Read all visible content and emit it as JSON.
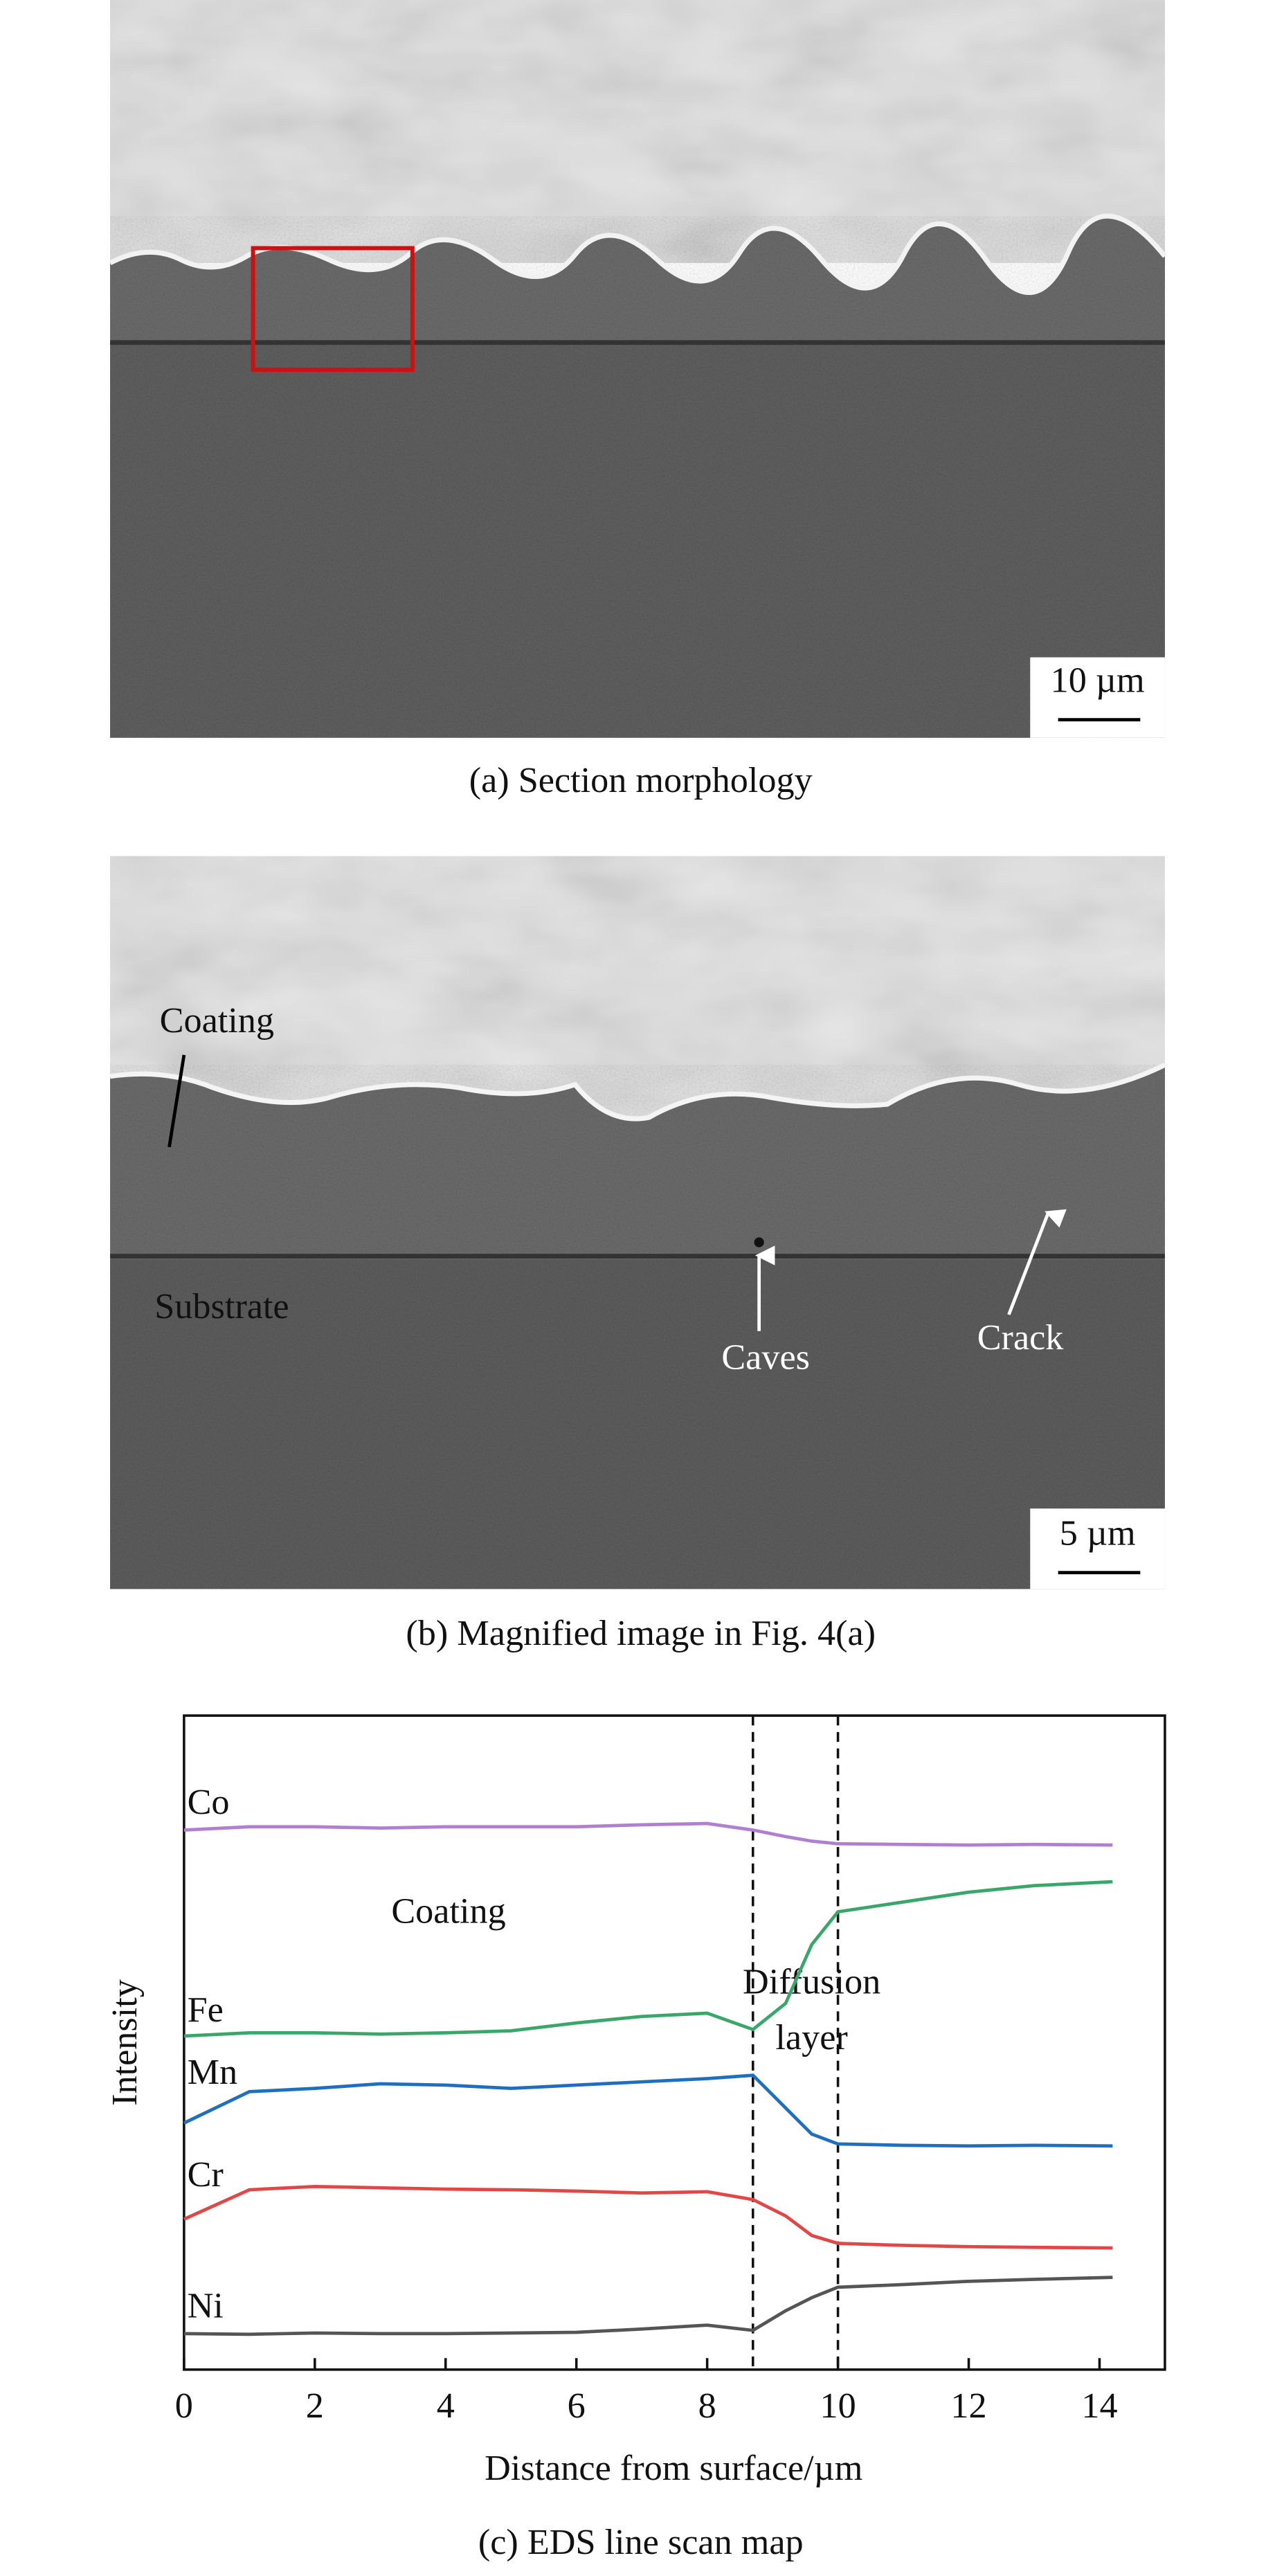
{
  "panels": [
    {
      "caption": "(a) Section morphology",
      "scale_bar": "10 µm"
    },
    {
      "caption": "(b) Magnified image in Fig. 4(a)",
      "scale_bar": "5 µm",
      "annotations": [
        "Coating",
        "Substrate",
        "Caves",
        "Crack"
      ]
    }
  ],
  "chart_data": {
    "type": "line",
    "caption": "(c) EDS line scan map",
    "x_label": "Distance from surface/µm",
    "y_label": "Intensity",
    "x": [
      0,
      1,
      2,
      3,
      4,
      5,
      6,
      7,
      8,
      8.7,
      9.2,
      9.6,
      10,
      11,
      12,
      13,
      14.2
    ],
    "series": [
      {
        "name": "Co",
        "color": "#b07fd0",
        "values": [
          82.5,
          83,
          83,
          82.8,
          83,
          83,
          83,
          83.3,
          83.5,
          82.5,
          81.5,
          80.8,
          80.4,
          80.3,
          80.2,
          80.3,
          80.2
        ]
      },
      {
        "name": "Fe",
        "color": "#3aa66a",
        "values": [
          51,
          51.5,
          51.5,
          51.3,
          51.5,
          51.8,
          53,
          54,
          54.5,
          52,
          56,
          65,
          70,
          71.5,
          73,
          74,
          74.6
        ]
      },
      {
        "name": "Mn",
        "color": "#1f6fc0",
        "values": [
          37.7,
          42.5,
          43,
          43.7,
          43.5,
          43,
          43.5,
          44,
          44.5,
          45,
          40,
          36,
          34.5,
          34.3,
          34.2,
          34.3,
          34.2
        ]
      },
      {
        "name": "Cr",
        "color": "#e04848",
        "values": [
          23,
          27.5,
          28,
          27.8,
          27.6,
          27.5,
          27.3,
          27,
          27.2,
          26,
          23.5,
          20.5,
          19.3,
          19,
          18.8,
          18.7,
          18.6
        ]
      },
      {
        "name": "Ni",
        "color": "#555555",
        "values": [
          5.5,
          5.4,
          5.6,
          5.5,
          5.5,
          5.6,
          5.7,
          6.2,
          6.8,
          6,
          9,
          11,
          12.6,
          13,
          13.5,
          13.8,
          14.1
        ]
      }
    ],
    "vlines": [
      8.7,
      10
    ],
    "annotations": [
      "Coating",
      "Diffusion",
      "layer"
    ],
    "xlim": [
      0,
      15
    ],
    "ylim": [
      0,
      100
    ],
    "xticks": [
      0,
      2,
      4,
      6,
      8,
      10,
      12,
      14
    ]
  }
}
